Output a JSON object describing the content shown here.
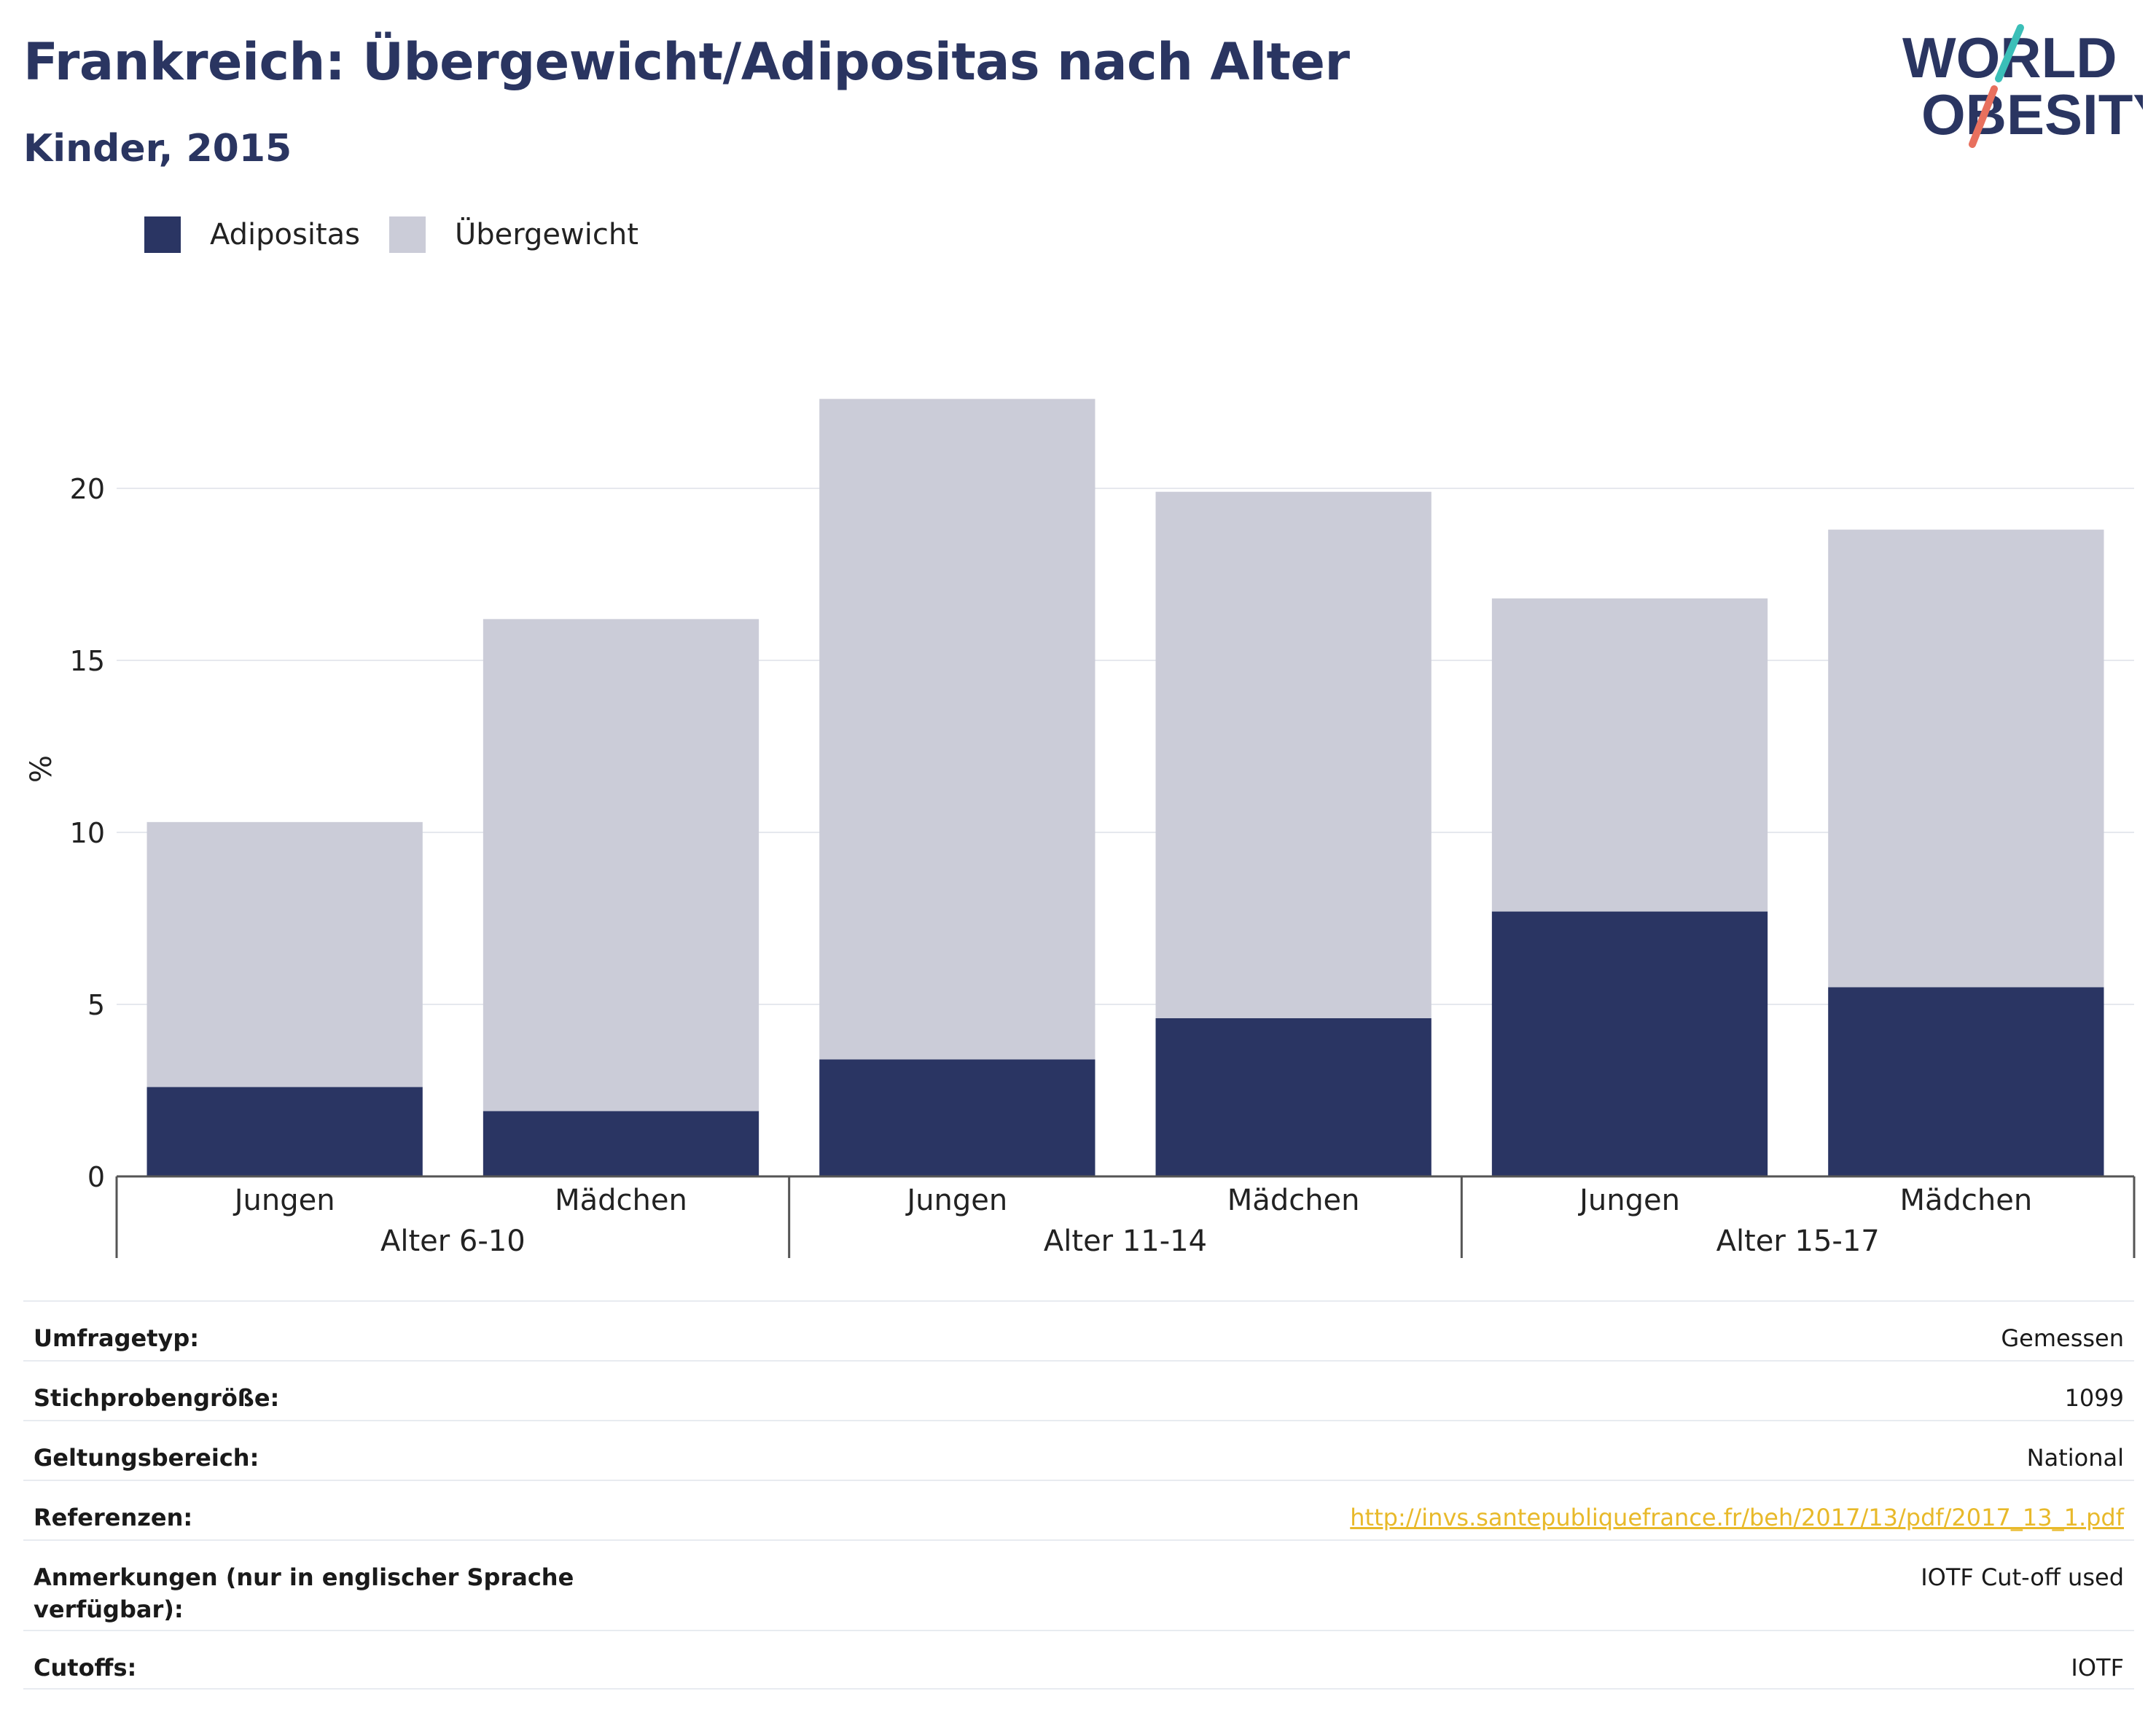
{
  "header": {
    "title": "Frankreich: Übergewicht/Adipositas nach Alter",
    "subtitle": "Kinder, 2015"
  },
  "logo": {
    "line1": "WORLD",
    "line2": "OBESITY",
    "colors": {
      "text": "#2a3561",
      "slash_top": "#3bbfb8",
      "slash_bottom": "#e8705e"
    }
  },
  "legend": [
    {
      "label": "Adipositas",
      "color": "#2a3563"
    },
    {
      "label": "Übergewicht",
      "color": "#cbccd8"
    }
  ],
  "chart_data": {
    "type": "bar",
    "stacked": true,
    "ylabel": "%",
    "ylim": [
      0,
      23.5
    ],
    "yticks": [
      0,
      5,
      10,
      15,
      20
    ],
    "grid": true,
    "legend_position": "top-left",
    "groups": [
      {
        "label": "Alter 6-10",
        "categories": [
          "Jungen",
          "Mädchen"
        ]
      },
      {
        "label": "Alter 11-14",
        "categories": [
          "Jungen",
          "Mädchen"
        ]
      },
      {
        "label": "Alter 15-17",
        "categories": [
          "Jungen",
          "Mädchen"
        ]
      }
    ],
    "categories": [
      "Jungen",
      "Mädchen",
      "Jungen",
      "Mädchen",
      "Jungen",
      "Mädchen"
    ],
    "series": [
      {
        "name": "Adipositas",
        "color": "#2a3563",
        "values": [
          2.6,
          1.9,
          3.4,
          4.6,
          7.7,
          5.5
        ]
      },
      {
        "name": "Übergewicht",
        "color": "#cbccd8",
        "values": [
          7.7,
          14.3,
          19.2,
          15.3,
          9.1,
          13.3
        ]
      }
    ]
  },
  "info_table": [
    {
      "key": "Umfragetyp:",
      "value": "Gemessen",
      "link": false
    },
    {
      "key": "Stichprobengröße:",
      "value": "1099",
      "link": false
    },
    {
      "key": "Geltungsbereich:",
      "value": "National",
      "link": false
    },
    {
      "key": "Referenzen:",
      "value": "http://invs.santepubliquefrance.fr/beh/2017/13/pdf/2017_13_1.pdf",
      "link": true
    },
    {
      "key": "Anmerkungen (nur in englischer Sprache verfügbar):",
      "value": "IOTF Cut-off used",
      "link": false
    },
    {
      "key": "Cutoffs:",
      "value": "IOTF",
      "link": false
    }
  ]
}
